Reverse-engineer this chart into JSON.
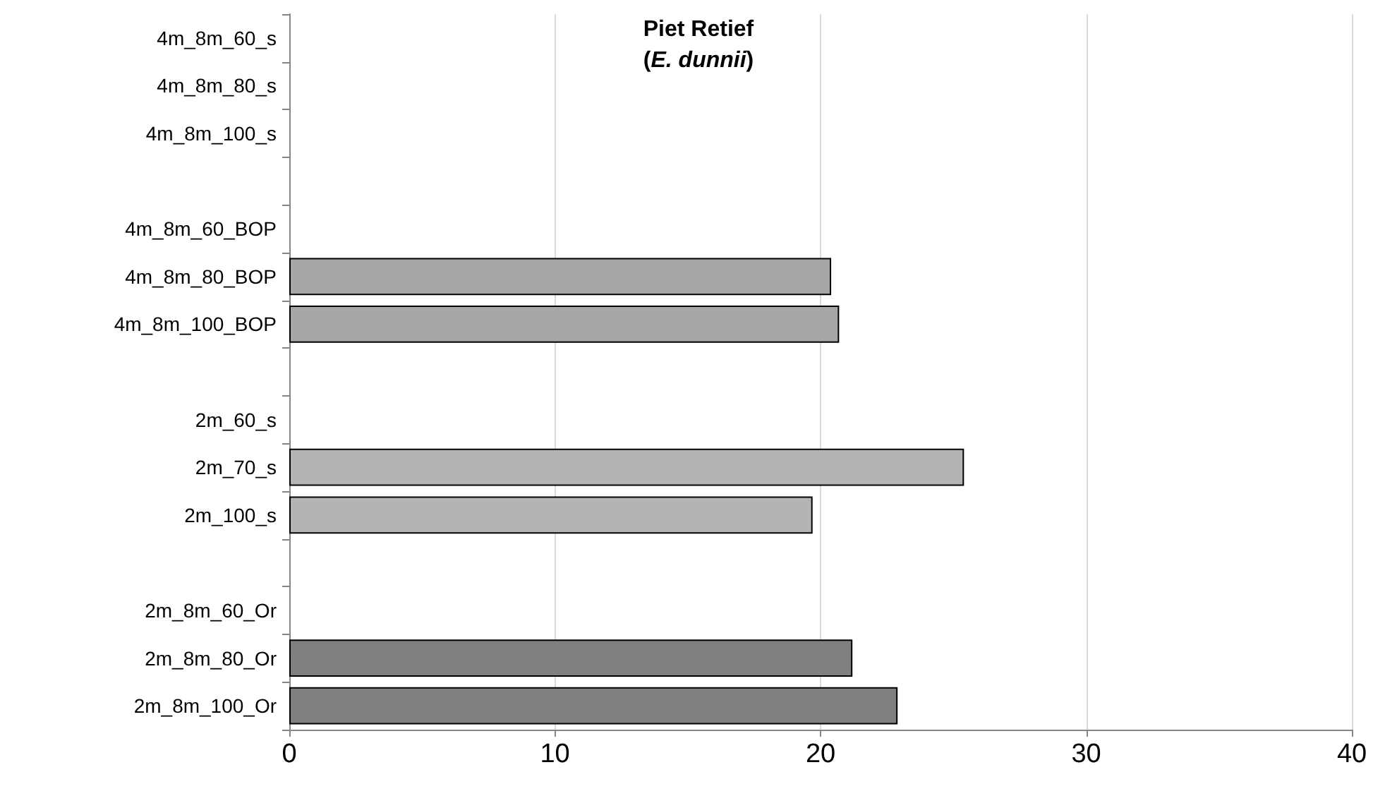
{
  "chart_data": {
    "type": "bar",
    "orientation": "horizontal",
    "title": "Piet Retief\n(E. dunnii)",
    "categories": [
      "4m_8m_60_s",
      "4m_8m_80_s",
      "4m_8m_100_s",
      null,
      "4m_8m_60_BOP",
      "4m_8m_80_BOP",
      "4m_8m_100_BOP",
      null,
      "2m_60_s",
      "2m_70_s",
      "2m_100_s",
      null,
      "2m_8m_60_Or",
      "2m_8m_80_Or",
      "2m_8m_100_Or"
    ],
    "values": [
      null,
      null,
      null,
      null,
      null,
      20.4,
      20.7,
      null,
      null,
      25.4,
      19.7,
      null,
      null,
      21.2,
      22.9
    ],
    "colors": [
      "#a6a6a6",
      "#a6a6a6",
      "#a6a6a6",
      "#a6a6a6",
      "#a6a6a6",
      "#a6a6a6",
      "#a6a6a6",
      "#b4b4b4",
      "#b4b4b4",
      "#b4b4b4",
      "#b4b4b4",
      "#7f7f7f",
      "#7f7f7f",
      "#7f7f7f",
      "#7f7f7f"
    ],
    "xlim": [
      0,
      40
    ],
    "xticks": [
      0,
      10,
      20,
      30,
      40
    ],
    "grid": "x"
  }
}
